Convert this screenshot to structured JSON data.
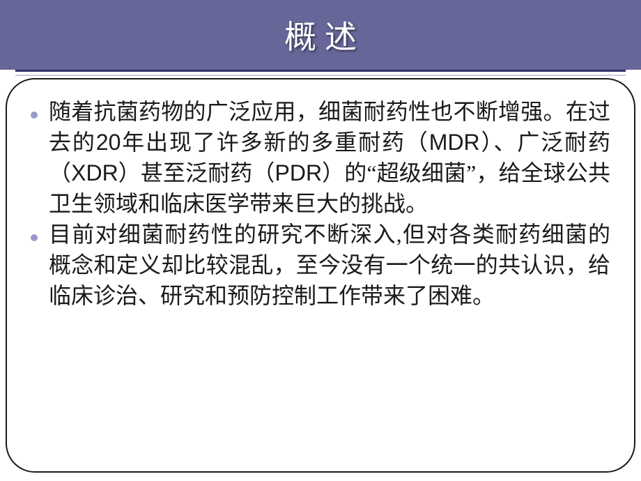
{
  "slide": {
    "title": "概述",
    "header_bg": "#666699",
    "title_color": "#ffffff",
    "title_fontsize": 46,
    "title_letter_spacing": 12,
    "underline_dark_color": "#333366",
    "underline_light_color": "#c9c9e0",
    "bullet_color": "#9999cc",
    "text_color": "#1a1a1a",
    "border_radius": 42,
    "body_fontsize": 32,
    "body_line_height": 44,
    "bullets": [
      "随着抗菌药物的广泛应用，细菌耐药性也不断增强。在过去的20年出现了许多新的多重耐药（MDR）、广泛耐药（XDR）甚至泛耐药（PDR）的“超级细菌”，给全球公共卫生领域和临床医学带来巨大的挑战。",
      "目前对细菌耐药性的研究不断深入,但对各类耐药细菌的概念和定义却比较混乱，至今没有一个统一的共认识，给临床诊治、研究和预防控制工作带来了困难。"
    ]
  }
}
